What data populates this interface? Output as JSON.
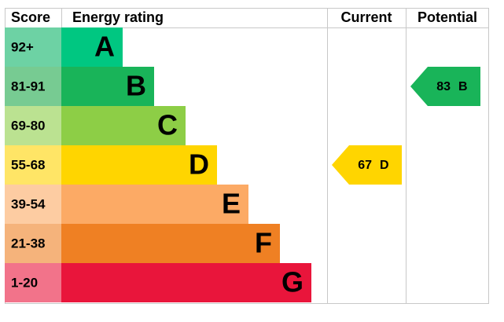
{
  "chart_data": {
    "type": "epc",
    "headers": {
      "score": "Score",
      "rating": "Energy rating",
      "current": "Current",
      "potential": "Potential"
    },
    "bands": [
      {
        "range": "92+",
        "letter": "A",
        "color": "#00c781",
        "score_color": "#6dd2a4"
      },
      {
        "range": "81-91",
        "letter": "B",
        "color": "#19b459",
        "score_color": "#77cb92"
      },
      {
        "range": "69-80",
        "letter": "C",
        "color": "#8dce46",
        "score_color": "#bbe291"
      },
      {
        "range": "55-68",
        "letter": "D",
        "color": "#ffd500",
        "score_color": "#ffe566"
      },
      {
        "range": "39-54",
        "letter": "E",
        "color": "#fcaa65",
        "score_color": "#fdcca2"
      },
      {
        "range": "21-38",
        "letter": "F",
        "color": "#ef8023",
        "score_color": "#f5b37b"
      },
      {
        "range": "1-20",
        "letter": "G",
        "color": "#e9153b",
        "score_color": "#f2738a"
      }
    ],
    "current": {
      "value": 67,
      "letter": "D",
      "color": "#ffd500"
    },
    "potential": {
      "value": 83,
      "letter": "B",
      "color": "#19b459"
    }
  }
}
